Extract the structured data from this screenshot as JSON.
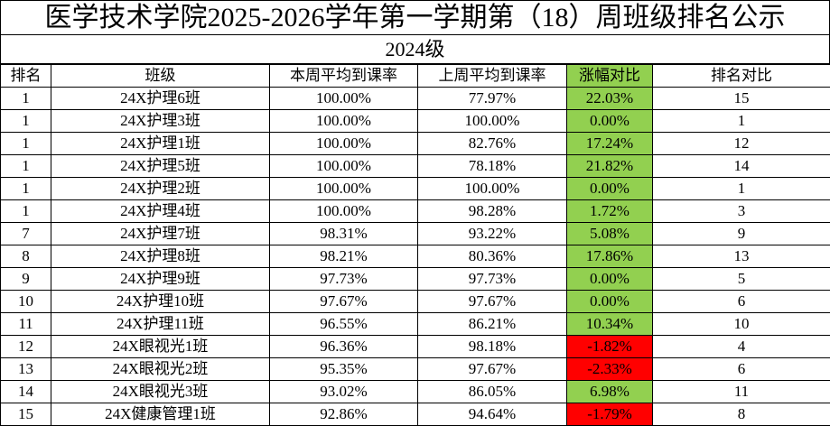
{
  "title": "医学技术学院2025-2026学年第一学期第（18）周班级排名公示",
  "subtitle": "2024级",
  "colors": {
    "increase": "#92d050",
    "decrease": "#ff0000"
  },
  "headers": [
    "排名",
    "班级",
    "本周平均到课率",
    "上周平均到课率",
    "涨幅对比",
    "排名对比"
  ],
  "rows": [
    {
      "rank": "1",
      "class": "24X护理6班",
      "this_week": "100.00%",
      "last_week": "77.97%",
      "change": "22.03%",
      "trend": "up",
      "rank_compare": "15"
    },
    {
      "rank": "1",
      "class": "24X护理3班",
      "this_week": "100.00%",
      "last_week": "100.00%",
      "change": "0.00%",
      "trend": "up",
      "rank_compare": "1"
    },
    {
      "rank": "1",
      "class": "24X护理1班",
      "this_week": "100.00%",
      "last_week": "82.76%",
      "change": "17.24%",
      "trend": "up",
      "rank_compare": "12"
    },
    {
      "rank": "1",
      "class": "24X护理5班",
      "this_week": "100.00%",
      "last_week": "78.18%",
      "change": "21.82%",
      "trend": "up",
      "rank_compare": "14"
    },
    {
      "rank": "1",
      "class": "24X护理2班",
      "this_week": "100.00%",
      "last_week": "100.00%",
      "change": "0.00%",
      "trend": "up",
      "rank_compare": "1"
    },
    {
      "rank": "1",
      "class": "24X护理4班",
      "this_week": "100.00%",
      "last_week": "98.28%",
      "change": "1.72%",
      "trend": "up",
      "rank_compare": "3"
    },
    {
      "rank": "7",
      "class": "24X护理7班",
      "this_week": "98.31%",
      "last_week": "93.22%",
      "change": "5.08%",
      "trend": "up",
      "rank_compare": "9"
    },
    {
      "rank": "8",
      "class": "24X护理8班",
      "this_week": "98.21%",
      "last_week": "80.36%",
      "change": "17.86%",
      "trend": "up",
      "rank_compare": "13"
    },
    {
      "rank": "9",
      "class": "24X护理9班",
      "this_week": "97.73%",
      "last_week": "97.73%",
      "change": "0.00%",
      "trend": "up",
      "rank_compare": "5"
    },
    {
      "rank": "10",
      "class": "24X护理10班",
      "this_week": "97.67%",
      "last_week": "97.67%",
      "change": "0.00%",
      "trend": "up",
      "rank_compare": "6"
    },
    {
      "rank": "11",
      "class": "24X护理11班",
      "this_week": "96.55%",
      "last_week": "86.21%",
      "change": "10.34%",
      "trend": "up",
      "rank_compare": "10"
    },
    {
      "rank": "12",
      "class": "24X眼视光1班",
      "this_week": "96.36%",
      "last_week": "98.18%",
      "change": "-1.82%",
      "trend": "down",
      "rank_compare": "4"
    },
    {
      "rank": "13",
      "class": "24X眼视光2班",
      "this_week": "95.35%",
      "last_week": "97.67%",
      "change": "-2.33%",
      "trend": "down",
      "rank_compare": "6"
    },
    {
      "rank": "14",
      "class": "24X眼视光3班",
      "this_week": "93.02%",
      "last_week": "86.05%",
      "change": "6.98%",
      "trend": "up",
      "rank_compare": "11"
    },
    {
      "rank": "15",
      "class": "24X健康管理1班",
      "this_week": "92.86%",
      "last_week": "94.64%",
      "change": "-1.79%",
      "trend": "down",
      "rank_compare": "8"
    }
  ]
}
